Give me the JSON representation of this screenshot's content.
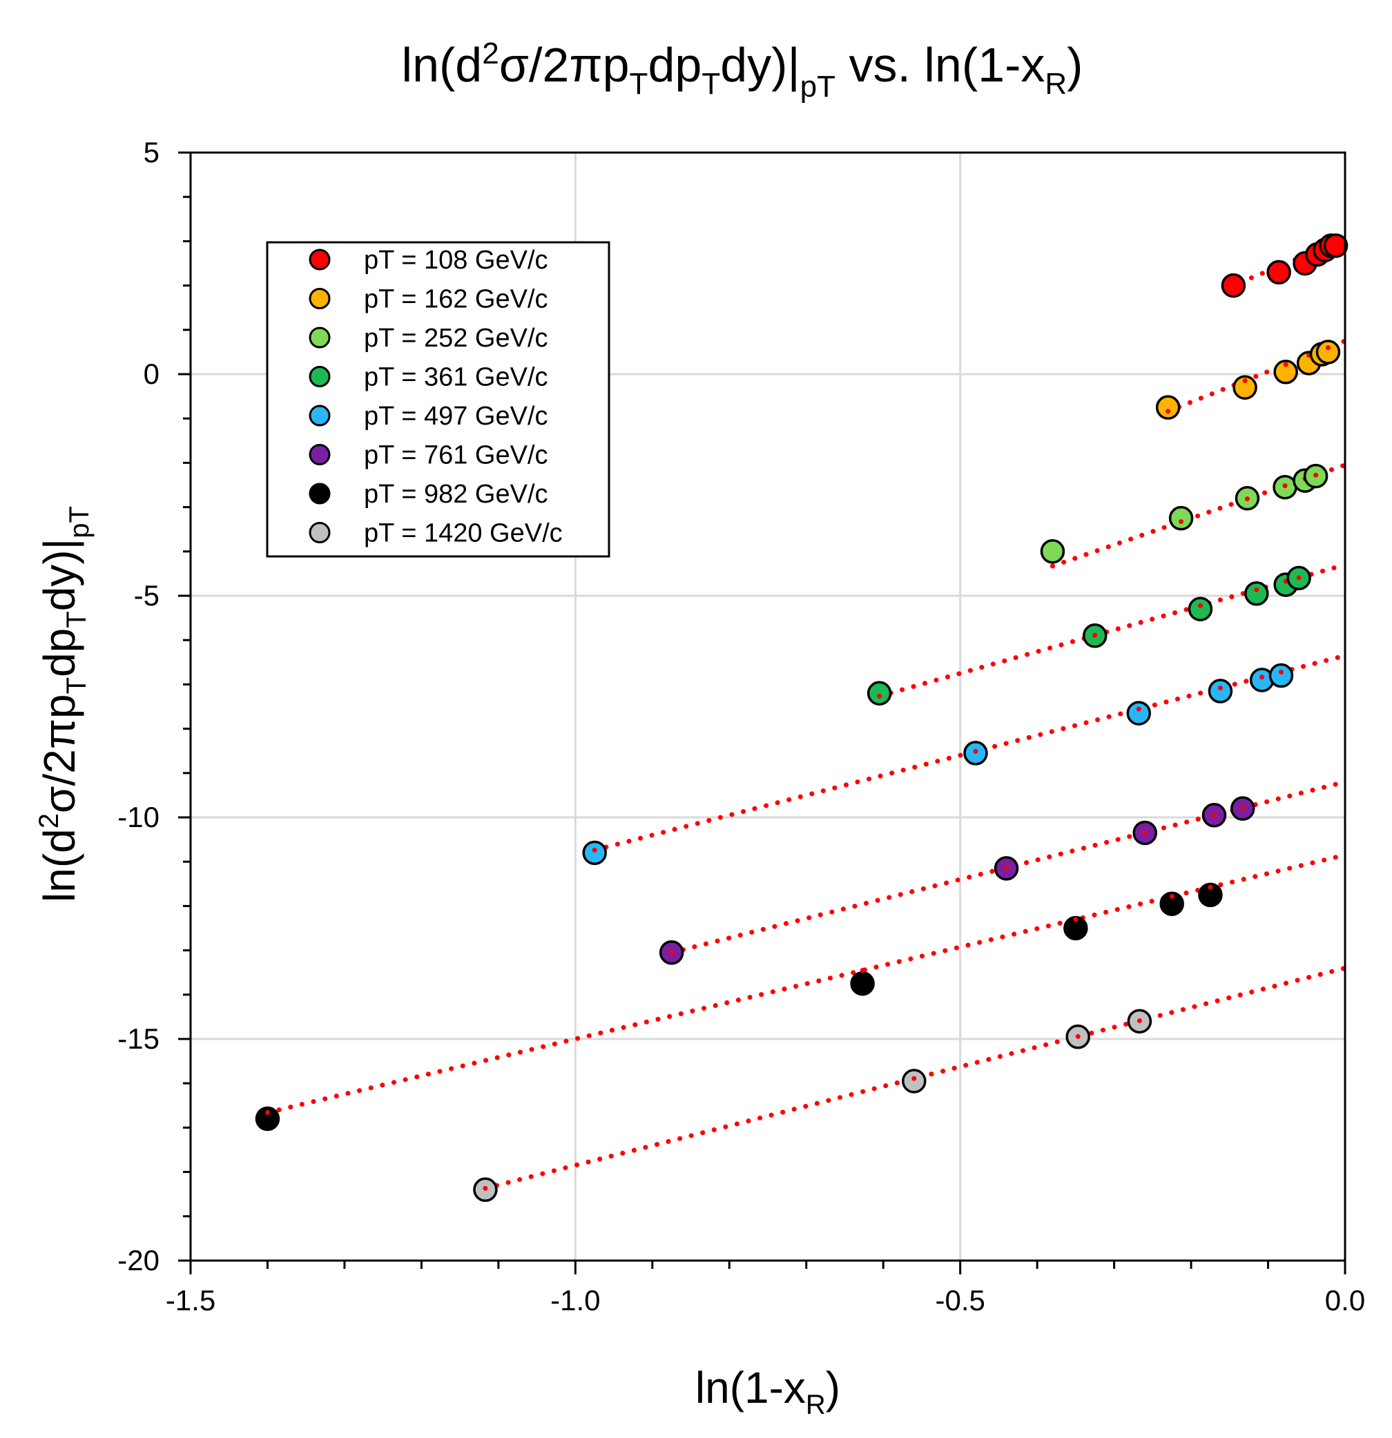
{
  "chart_data": {
    "type": "scatter",
    "title": {
      "prefix": "ln(d",
      "sup": "2",
      "mid1": "σ/2πp",
      "sub1": "T",
      "mid2": "dp",
      "sub2": "T",
      "mid3": "dy)",
      "bar": "|",
      "sub3": "pT",
      "suffix": " vs. ln(1-x",
      "sub4": "R",
      "end": ")"
    },
    "xlabel": {
      "main": "ln(1-x",
      "sub": "R",
      "end": ")"
    },
    "ylabel": {
      "prefix": "ln(d",
      "sup": "2",
      "mid1": "σ/2πp",
      "sub1": "T",
      "mid2": "dp",
      "sub2": "T",
      "mid3": "dy)",
      "bar": "|",
      "sub3": "pT"
    },
    "xlim": [
      -1.5,
      0.0
    ],
    "ylim": [
      -20,
      5
    ],
    "xticks": [
      -1.5,
      -1.0,
      -0.5,
      0.0
    ],
    "xtick_labels": [
      "-1.5",
      "-1.0",
      "-0.5",
      "0.0"
    ],
    "yticks": [
      5,
      0,
      -5,
      -10,
      -15,
      -20
    ],
    "ytick_labels": [
      "5",
      "0",
      "-5",
      "-10",
      "-15",
      "-20"
    ],
    "grid": true,
    "legend_position": "top-left",
    "fit_line_color": "#ff0000",
    "series": [
      {
        "name": "pT = 108 GeV/c",
        "color": "#ff0000",
        "fit": {
          "slope": 7.2,
          "intercept": 3.05,
          "x0": -0.15
        },
        "x": [
          -0.145,
          -0.086,
          -0.052,
          -0.036,
          -0.026,
          -0.018,
          -0.012
        ],
        "y": [
          2.0,
          2.3,
          2.5,
          2.7,
          2.8,
          2.9,
          2.9
        ]
      },
      {
        "name": "pT = 162 GeV/c",
        "color": "#ffb300",
        "fit": {
          "slope": 6.9,
          "intercept": 0.75,
          "x0": -0.23
        },
        "x": [
          -0.23,
          -0.13,
          -0.077,
          -0.047,
          -0.03,
          -0.022
        ],
        "y": [
          -0.75,
          -0.3,
          0.05,
          0.25,
          0.45,
          0.5
        ]
      },
      {
        "name": "pT = 252 GeV/c",
        "color": "#7ed957",
        "fit": {
          "slope": 6.0,
          "intercept": -2.05,
          "x0": -0.38
        },
        "x": [
          -0.38,
          -0.213,
          -0.127,
          -0.078,
          -0.052,
          -0.038
        ],
        "y": [
          -4.0,
          -3.25,
          -2.8,
          -2.55,
          -2.4,
          -2.3
        ]
      },
      {
        "name": "pT = 361 GeV/c",
        "color": "#1db954",
        "fit": {
          "slope": 4.9,
          "intercept": -4.3,
          "x0": -0.605
        },
        "x": [
          -0.605,
          -0.325,
          -0.188,
          -0.115,
          -0.077,
          -0.06
        ],
        "y": [
          -7.2,
          -5.9,
          -5.3,
          -4.95,
          -4.75,
          -4.6
        ]
      },
      {
        "name": "pT = 497 GeV/c",
        "color": "#29b6f6",
        "fit": {
          "slope": 4.5,
          "intercept": -6.35,
          "x0": -0.975
        },
        "x": [
          -0.975,
          -0.48,
          -0.268,
          -0.162,
          -0.108,
          -0.083
        ],
        "y": [
          -10.8,
          -8.55,
          -7.65,
          -7.15,
          -6.9,
          -6.8
        ]
      },
      {
        "name": "pT = 761 GeV/c",
        "color": "#7b1fa2",
        "fit": {
          "slope": 4.4,
          "intercept": -9.2,
          "x0": -0.875
        },
        "x": [
          -0.875,
          -0.44,
          -0.26,
          -0.17,
          -0.133
        ],
        "y": [
          -13.05,
          -11.15,
          -10.35,
          -9.95,
          -9.8
        ]
      },
      {
        "name": "pT = 982 GeV/c",
        "color": "#000000",
        "fit": {
          "slope": 4.15,
          "intercept": -10.85,
          "x0": -1.4
        },
        "x": [
          -1.4,
          -0.627,
          -0.35,
          -0.225,
          -0.175
        ],
        "y": [
          -16.8,
          -13.75,
          -12.5,
          -11.95,
          -11.75
        ]
      },
      {
        "name": "pT = 1420 GeV/c",
        "color": "#c0c0c0",
        "fit": {
          "slope": 4.45,
          "intercept": -13.4,
          "x0": -1.117
        },
        "x": [
          -1.117,
          -0.56,
          -0.347,
          -0.267
        ],
        "y": [
          -18.4,
          -15.95,
          -14.95,
          -14.6
        ]
      }
    ]
  }
}
